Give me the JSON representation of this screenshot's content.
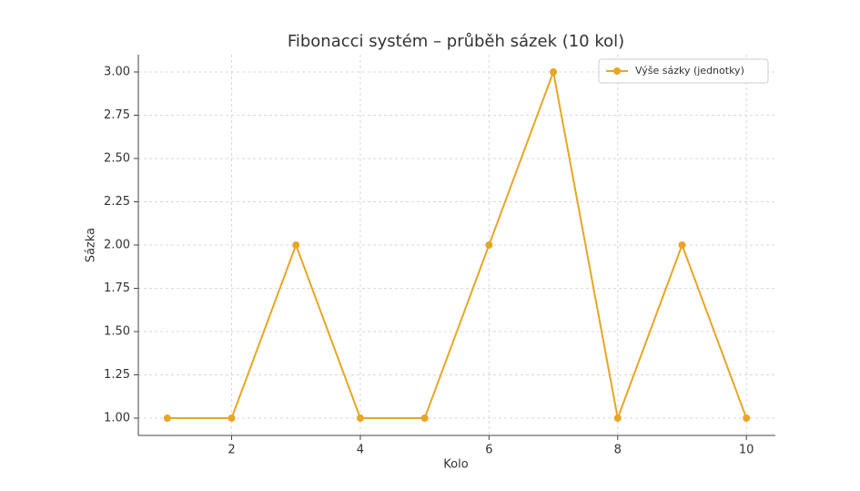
{
  "chart_data": {
    "type": "line",
    "title": "Fibonacci systém – průběh sázek (10 kol)",
    "x_label": "Kolo",
    "y_label": "Sázka",
    "x": [
      1,
      2,
      3,
      4,
      5,
      6,
      7,
      8,
      9,
      10
    ],
    "series": [
      {
        "name": "Výše sázky (jednotky)",
        "color": "#e8a623",
        "values": [
          1,
          1,
          2,
          1,
          1,
          2,
          3,
          1,
          2,
          1
        ]
      }
    ],
    "xlim": [
      0.55,
      10.45
    ],
    "xticks": [
      2,
      4,
      6,
      8,
      10
    ],
    "ylim": [
      0.9,
      3.1
    ],
    "yticks": [
      {
        "value": 1,
        "label": "1.00"
      },
      1.25,
      {
        "value": 1.5,
        "label": "1.50"
      },
      1.75,
      {
        "value": 2,
        "label": "2.00"
      },
      2.25,
      {
        "value": 2.5,
        "label": "2.50"
      },
      2.75,
      {
        "value": 3,
        "label": "3.00"
      }
    ],
    "grid": true,
    "legend": "upper right"
  }
}
